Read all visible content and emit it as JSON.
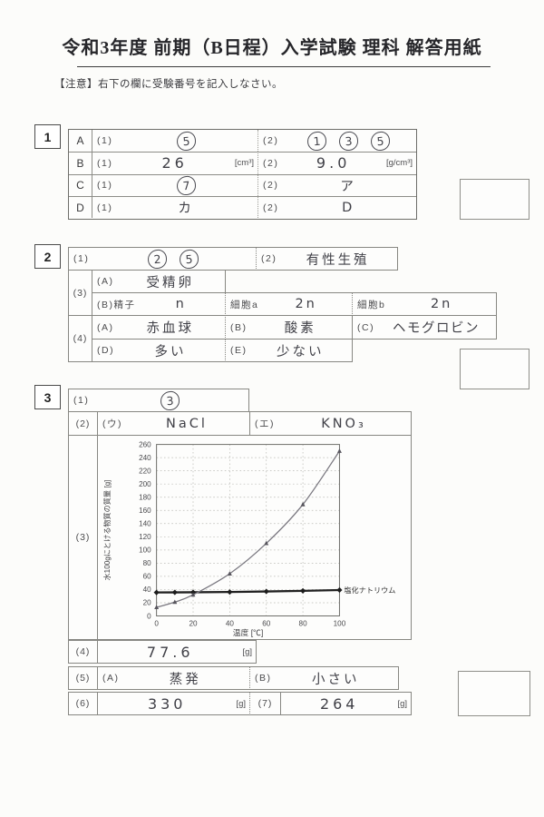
{
  "page": {
    "title": "令和3年度 前期（B日程）入学試験 理科 解答用紙",
    "notice": "【注意】右下の欄に受験番号を記入しなさい。"
  },
  "section1": {
    "num": "1",
    "rows": [
      {
        "label": "A",
        "q1": "(1)",
        "circled1": [
          "5"
        ],
        "q2": "(2)",
        "circled2": [
          "1",
          "3",
          "5"
        ]
      },
      {
        "label": "B",
        "q1": "(1)",
        "ans1": "26",
        "unit1": "[cm³]",
        "q2": "(2)",
        "ans2": "9.0",
        "unit2": "[g/cm³]"
      },
      {
        "label": "C",
        "q1": "(1)",
        "circled1": [
          "7"
        ],
        "q2": "(2)",
        "ans2": "ア"
      },
      {
        "label": "D",
        "q1": "(1)",
        "ans1": "カ",
        "q2": "(2)",
        "ans2": "D"
      }
    ]
  },
  "section2": {
    "num": "2",
    "q1": "(1)",
    "q1_circled": [
      "2",
      "5"
    ],
    "q2": "(2)",
    "q2_ans": "有性生殖",
    "q3": {
      "label": "(3)",
      "a_label": "(A)",
      "a_ans": "受精卵",
      "b_label": "(B)精子",
      "b_ans": "n",
      "ca_label": "細胞a",
      "ca_ans": "2n",
      "cb_label": "細胞b",
      "cb_ans": "2n"
    },
    "q4": {
      "label": "(4)",
      "a_label": "(A)",
      "a_ans": "赤血球",
      "b_label": "(B)",
      "b_ans": "酸素",
      "c_label": "(C)",
      "c_ans": "ヘモグロビン",
      "d_label": "(D)",
      "d_ans": "多い",
      "e_label": "(E)",
      "e_ans": "少ない"
    }
  },
  "section3": {
    "num": "3",
    "q1": "(1)",
    "q1_circled": [
      "3"
    ],
    "q2": "(2)",
    "q2_u_label": "(ウ)",
    "q2_u_ans": "NaCl",
    "q2_e_label": "(エ)",
    "q2_e_ans": "KNO₃",
    "q3_label": "(3)",
    "q4": "(4)",
    "q4_ans": "77.6",
    "q4_unit": "[g]",
    "q5": "(5)",
    "q5_a_label": "(A)",
    "q5_a_ans": "蒸発",
    "q5_b_label": "(B)",
    "q5_b_ans": "小さい",
    "q6": "(6)",
    "q6_ans": "330",
    "q6_unit": "[g]",
    "q7": "(7)",
    "q7_ans": "264",
    "q7_unit": "[g]"
  },
  "chart_data": {
    "type": "line",
    "title": "",
    "xlabel": "温度 [℃]",
    "ylabel": "水100gにとける物質の質量 [g]",
    "xlim": [
      0,
      100
    ],
    "ylim": [
      0,
      260
    ],
    "x_ticks": [
      0,
      20,
      40,
      60,
      80,
      100
    ],
    "y_ticks": [
      0,
      20,
      40,
      60,
      80,
      100,
      120,
      140,
      160,
      180,
      200,
      220,
      240,
      260
    ],
    "grid": "dotted",
    "legend_position": "right-of-line",
    "series": [
      {
        "name": "塩化ナトリウム",
        "label": "塩化ナトリウム",
        "style": "printed_bold",
        "marker": "diamond",
        "x": [
          0,
          10,
          20,
          40,
          60,
          80,
          100
        ],
        "values": [
          35.6,
          35.7,
          35.8,
          36.3,
          37.1,
          38.0,
          39.3
        ]
      },
      {
        "name": "",
        "label": "",
        "style": "hand_drawn_pencil",
        "marker": "triangle",
        "x": [
          0,
          10,
          20,
          40,
          60,
          80,
          100
        ],
        "values": [
          13,
          21,
          32,
          64,
          110,
          169,
          250
        ]
      }
    ]
  }
}
